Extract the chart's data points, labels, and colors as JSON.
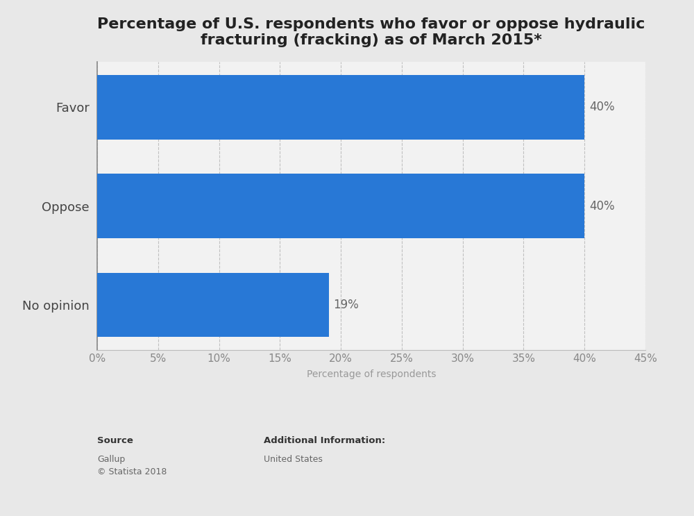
{
  "title": "Percentage of U.S. respondents who favor or oppose hydraulic\nfracturing (fracking) as of March 2015*",
  "categories": [
    "No opinion",
    "Oppose",
    "Favor"
  ],
  "values": [
    19,
    40,
    40
  ],
  "bar_color": "#2878d6",
  "xlabel": "Percentage of respondents",
  "xlim": [
    0,
    45
  ],
  "xticks": [
    0,
    5,
    10,
    15,
    20,
    25,
    30,
    35,
    40,
    45
  ],
  "xtick_labels": [
    "0%",
    "5%",
    "10%",
    "15%",
    "20%",
    "25%",
    "30%",
    "35%",
    "40%",
    "45%"
  ],
  "background_color": "#e8e8e8",
  "plot_bg_color": "#f2f2f2",
  "title_fontsize": 16,
  "axis_label_fontsize": 10,
  "tick_fontsize": 11,
  "bar_label_fontsize": 12,
  "ytick_fontsize": 13,
  "footer_source_label": "Source",
  "footer_source_text": "Gallup\n© Statista 2018",
  "footer_info_label": "Additional Information:",
  "footer_info_text": "United States"
}
